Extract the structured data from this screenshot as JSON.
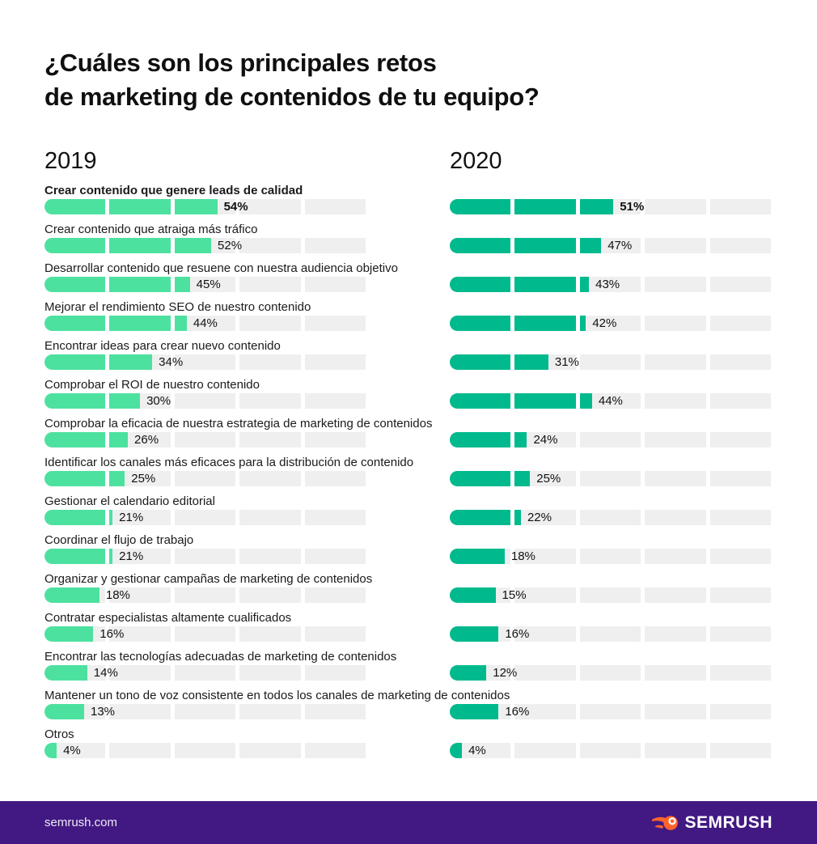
{
  "page": {
    "title_line1": "¿Cuáles son los principales retos",
    "title_line2": "de marketing de contenidos de tu equipo?"
  },
  "footer": {
    "url": "semrush.com",
    "brand": "SEMRUSH"
  },
  "colors": {
    "bar_2019": "#4DE1A0",
    "bar_2020": "#00BA8D",
    "track": "#EFEFEF",
    "footer_bg": "#421983",
    "logo_orange": "#FF642D",
    "text": "#141414"
  },
  "chart_data": {
    "type": "bar",
    "orientation": "horizontal",
    "title": "¿Cuáles son los principales retos de marketing de contenidos de tu equipo?",
    "value_suffix": "%",
    "xlim": [
      0,
      100
    ],
    "segments_per_bar": 5,
    "segment_step": 20,
    "highlight_row": 0,
    "legend_position": "top-as-column-headers",
    "grid": false,
    "categories": [
      "Crear contenido que genere leads de calidad",
      "Crear contenido que atraiga más tráfico",
      "Desarrollar contenido que resuene con nuestra audiencia objetivo",
      "Mejorar el rendimiento SEO de nuestro contenido",
      "Encontrar ideas para crear nuevo contenido",
      "Comprobar el ROI de nuestro contenido",
      "Comprobar la eficacia de nuestra estrategia de marketing de contenidos",
      "Identificar los canales más eficaces para la distribución de contenido",
      "Gestionar el calendario editorial",
      "Coordinar el flujo de trabajo",
      "Organizar y gestionar campañas de marketing de contenidos",
      "Contratar especialistas altamente cualificados",
      "Encontrar las tecnologías adecuadas de marketing de contenidos",
      "Mantener un tono de voz consistente en todos los canales de marketing de contenidos",
      "Otros"
    ],
    "series": [
      {
        "name": "2019",
        "color": "#4DE1A0",
        "values": [
          54,
          52,
          45,
          44,
          34,
          30,
          26,
          25,
          21,
          21,
          18,
          16,
          14,
          13,
          4
        ]
      },
      {
        "name": "2020",
        "color": "#00BA8D",
        "values": [
          51,
          47,
          43,
          42,
          31,
          44,
          24,
          25,
          22,
          18,
          15,
          16,
          12,
          16,
          4
        ]
      }
    ]
  }
}
